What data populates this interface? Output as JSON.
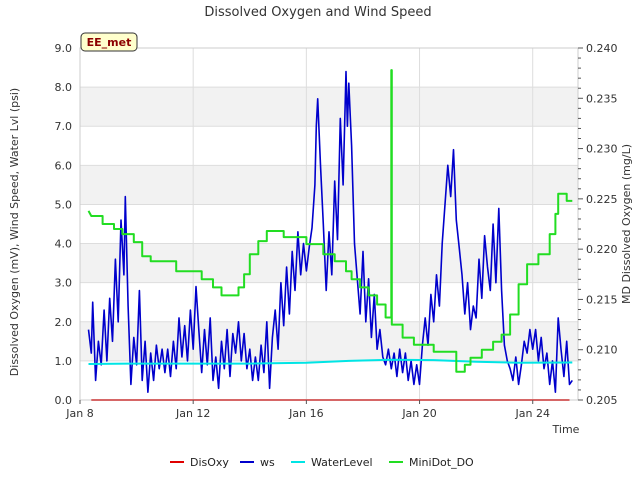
{
  "chart_data": {
    "type": "line",
    "title": "Dissolved Oxygen and Wind Speed",
    "station_label": "EE_met",
    "xlabel": "Time",
    "ylabel_left": "Dissolved Oxygen (mV), Wind Speed, Water Lvl (psi)",
    "ylabel_right": "MD Dissolved Oxygen (mg/L)",
    "x_range": [
      8.0,
      25.6
    ],
    "x_ticks": [
      {
        "value": 8,
        "label": "Jan 8"
      },
      {
        "value": 12,
        "label": "Jan 12"
      },
      {
        "value": 16,
        "label": "Jan 16"
      },
      {
        "value": 20,
        "label": "Jan 20"
      },
      {
        "value": 24,
        "label": "Jan 24"
      }
    ],
    "ylim_left": [
      0,
      9
    ],
    "y_ticks_left": [
      "0.0",
      "1.0",
      "2.0",
      "3.0",
      "4.0",
      "5.0",
      "6.0",
      "7.0",
      "8.0",
      "9.0"
    ],
    "ylim_right": [
      0.205,
      0.24
    ],
    "y_ticks_right": [
      "0.205",
      "0.210",
      "0.215",
      "0.220",
      "0.225",
      "0.230",
      "0.235",
      "0.240"
    ],
    "grid": true,
    "legend_position": "bottom",
    "series": [
      {
        "name": "DisOxy",
        "color": "#e00000",
        "axis": "left",
        "points": [
          [
            8.4,
            0.0
          ],
          [
            25.3,
            0.0
          ]
        ]
      },
      {
        "name": "ws",
        "color": "#0000cc",
        "axis": "left",
        "points": [
          [
            8.3,
            1.8
          ],
          [
            8.4,
            1.2
          ],
          [
            8.45,
            2.5
          ],
          [
            8.55,
            0.5
          ],
          [
            8.65,
            1.5
          ],
          [
            8.75,
            0.9
          ],
          [
            8.85,
            2.3
          ],
          [
            8.95,
            1.0
          ],
          [
            9.05,
            2.6
          ],
          [
            9.15,
            1.5
          ],
          [
            9.25,
            3.6
          ],
          [
            9.35,
            2.0
          ],
          [
            9.45,
            4.6
          ],
          [
            9.55,
            3.2
          ],
          [
            9.6,
            5.2
          ],
          [
            9.7,
            2.4
          ],
          [
            9.8,
            0.4
          ],
          [
            9.9,
            1.6
          ],
          [
            10.0,
            0.9
          ],
          [
            10.1,
            2.8
          ],
          [
            10.2,
            0.5
          ],
          [
            10.3,
            1.5
          ],
          [
            10.4,
            0.2
          ],
          [
            10.5,
            1.2
          ],
          [
            10.6,
            0.5
          ],
          [
            10.7,
            1.4
          ],
          [
            10.8,
            0.8
          ],
          [
            10.9,
            1.3
          ],
          [
            11.0,
            0.7
          ],
          [
            11.1,
            1.3
          ],
          [
            11.2,
            0.6
          ],
          [
            11.3,
            1.5
          ],
          [
            11.4,
            0.8
          ],
          [
            11.5,
            2.1
          ],
          [
            11.6,
            1.1
          ],
          [
            11.7,
            1.9
          ],
          [
            11.8,
            1.0
          ],
          [
            11.9,
            2.3
          ],
          [
            12.0,
            1.3
          ],
          [
            12.1,
            2.9
          ],
          [
            12.2,
            1.8
          ],
          [
            12.3,
            0.7
          ],
          [
            12.4,
            1.8
          ],
          [
            12.5,
            0.9
          ],
          [
            12.6,
            2.1
          ],
          [
            12.7,
            0.5
          ],
          [
            12.8,
            1.1
          ],
          [
            12.9,
            0.3
          ],
          [
            13.0,
            1.5
          ],
          [
            13.1,
            0.8
          ],
          [
            13.2,
            1.8
          ],
          [
            13.3,
            0.6
          ],
          [
            13.4,
            1.7
          ],
          [
            13.5,
            1.2
          ],
          [
            13.6,
            2.0
          ],
          [
            13.7,
            1.0
          ],
          [
            13.8,
            1.7
          ],
          [
            13.9,
            0.8
          ],
          [
            14.0,
            1.3
          ],
          [
            14.1,
            0.5
          ],
          [
            14.2,
            1.1
          ],
          [
            14.3,
            0.5
          ],
          [
            14.4,
            1.4
          ],
          [
            14.5,
            0.7
          ],
          [
            14.6,
            2.0
          ],
          [
            14.7,
            0.3
          ],
          [
            14.8,
            1.6
          ],
          [
            14.9,
            2.3
          ],
          [
            15.0,
            1.3
          ],
          [
            15.1,
            3.0
          ],
          [
            15.2,
            1.9
          ],
          [
            15.3,
            3.4
          ],
          [
            15.4,
            2.2
          ],
          [
            15.5,
            3.8
          ],
          [
            15.6,
            2.8
          ],
          [
            15.7,
            4.3
          ],
          [
            15.8,
            3.2
          ],
          [
            15.9,
            4.0
          ],
          [
            16.0,
            3.3
          ],
          [
            16.1,
            3.9
          ],
          [
            16.2,
            4.4
          ],
          [
            16.3,
            5.5
          ],
          [
            16.35,
            7.0
          ],
          [
            16.4,
            7.7
          ],
          [
            16.5,
            6.0
          ],
          [
            16.6,
            4.5
          ],
          [
            16.7,
            2.8
          ],
          [
            16.8,
            4.3
          ],
          [
            16.9,
            3.2
          ],
          [
            17.0,
            5.6
          ],
          [
            17.1,
            4.1
          ],
          [
            17.2,
            7.2
          ],
          [
            17.3,
            5.5
          ],
          [
            17.4,
            8.4
          ],
          [
            17.45,
            7.0
          ],
          [
            17.5,
            8.1
          ],
          [
            17.6,
            6.5
          ],
          [
            17.7,
            4.0
          ],
          [
            17.8,
            3.1
          ],
          [
            17.9,
            2.2
          ],
          [
            18.0,
            3.8
          ],
          [
            18.1,
            2.0
          ],
          [
            18.2,
            3.1
          ],
          [
            18.3,
            1.6
          ],
          [
            18.4,
            2.7
          ],
          [
            18.5,
            1.3
          ],
          [
            18.6,
            1.8
          ],
          [
            18.7,
            1.1
          ],
          [
            18.8,
            0.9
          ],
          [
            18.9,
            1.3
          ],
          [
            19.0,
            0.8
          ],
          [
            19.1,
            1.2
          ],
          [
            19.2,
            0.6
          ],
          [
            19.3,
            1.3
          ],
          [
            19.4,
            0.7
          ],
          [
            19.5,
            1.2
          ],
          [
            19.6,
            0.5
          ],
          [
            19.7,
            1.0
          ],
          [
            19.8,
            0.4
          ],
          [
            19.9,
            0.9
          ],
          [
            20.0,
            0.4
          ],
          [
            20.1,
            1.4
          ],
          [
            20.2,
            2.1
          ],
          [
            20.3,
            1.4
          ],
          [
            20.4,
            2.7
          ],
          [
            20.5,
            2.0
          ],
          [
            20.6,
            3.2
          ],
          [
            20.7,
            2.4
          ],
          [
            20.8,
            4.0
          ],
          [
            20.9,
            5.0
          ],
          [
            21.0,
            6.0
          ],
          [
            21.1,
            5.2
          ],
          [
            21.2,
            6.4
          ],
          [
            21.3,
            4.6
          ],
          [
            21.4,
            3.9
          ],
          [
            21.5,
            3.2
          ],
          [
            21.6,
            2.2
          ],
          [
            21.7,
            3.0
          ],
          [
            21.8,
            1.8
          ],
          [
            21.9,
            2.4
          ],
          [
            22.0,
            2.1
          ],
          [
            22.1,
            3.6
          ],
          [
            22.2,
            2.6
          ],
          [
            22.3,
            4.2
          ],
          [
            22.4,
            3.4
          ],
          [
            22.5,
            2.8
          ],
          [
            22.6,
            4.5
          ],
          [
            22.7,
            3.0
          ],
          [
            22.8,
            4.9
          ],
          [
            22.9,
            2.8
          ],
          [
            23.0,
            1.4
          ],
          [
            23.1,
            1.0
          ],
          [
            23.2,
            0.8
          ],
          [
            23.3,
            0.5
          ],
          [
            23.4,
            1.1
          ],
          [
            23.5,
            0.4
          ],
          [
            23.6,
            0.9
          ],
          [
            23.7,
            1.5
          ],
          [
            23.8,
            1.2
          ],
          [
            23.9,
            1.8
          ],
          [
            24.0,
            1.3
          ],
          [
            24.1,
            1.8
          ],
          [
            24.2,
            1.0
          ],
          [
            24.3,
            1.6
          ],
          [
            24.4,
            0.8
          ],
          [
            24.5,
            1.2
          ],
          [
            24.6,
            0.4
          ],
          [
            24.7,
            1.0
          ],
          [
            24.8,
            0.2
          ],
          [
            24.9,
            2.1
          ],
          [
            25.0,
            1.3
          ],
          [
            25.1,
            0.6
          ],
          [
            25.2,
            1.5
          ],
          [
            25.3,
            0.4
          ],
          [
            25.4,
            0.5
          ]
        ]
      },
      {
        "name": "WaterLevel",
        "color": "#00e5e5",
        "axis": "left",
        "points": [
          [
            8.3,
            0.92
          ],
          [
            10.0,
            0.93
          ],
          [
            12.0,
            0.93
          ],
          [
            14.0,
            0.93
          ],
          [
            16.0,
            0.95
          ],
          [
            17.5,
            1.0
          ],
          [
            19.0,
            1.03
          ],
          [
            20.5,
            1.02
          ],
          [
            22.0,
            0.98
          ],
          [
            23.5,
            0.95
          ],
          [
            25.4,
            0.96
          ]
        ]
      },
      {
        "name": "MiniDot_DO",
        "color": "#22dd22",
        "axis": "right",
        "points": [
          [
            8.3,
            0.2238
          ],
          [
            8.4,
            0.2233
          ],
          [
            8.8,
            0.2233
          ],
          [
            8.8,
            0.2225
          ],
          [
            9.2,
            0.2225
          ],
          [
            9.2,
            0.222
          ],
          [
            9.5,
            0.222
          ],
          [
            9.5,
            0.2215
          ],
          [
            9.9,
            0.2215
          ],
          [
            9.9,
            0.2207
          ],
          [
            10.2,
            0.2207
          ],
          [
            10.2,
            0.2193
          ],
          [
            10.5,
            0.2193
          ],
          [
            10.5,
            0.2188
          ],
          [
            11.4,
            0.2188
          ],
          [
            11.4,
            0.2178
          ],
          [
            12.3,
            0.2178
          ],
          [
            12.3,
            0.217
          ],
          [
            12.7,
            0.217
          ],
          [
            12.7,
            0.2162
          ],
          [
            13.0,
            0.2162
          ],
          [
            13.0,
            0.2154
          ],
          [
            13.6,
            0.2154
          ],
          [
            13.6,
            0.2162
          ],
          [
            13.8,
            0.2162
          ],
          [
            13.8,
            0.2175
          ],
          [
            14.0,
            0.2175
          ],
          [
            14.0,
            0.2195
          ],
          [
            14.3,
            0.2195
          ],
          [
            14.3,
            0.2208
          ],
          [
            14.6,
            0.2208
          ],
          [
            14.6,
            0.2218
          ],
          [
            15.2,
            0.2218
          ],
          [
            15.2,
            0.2212
          ],
          [
            16.0,
            0.2212
          ],
          [
            16.0,
            0.2205
          ],
          [
            16.6,
            0.2205
          ],
          [
            16.6,
            0.2195
          ],
          [
            17.0,
            0.2195
          ],
          [
            17.0,
            0.2188
          ],
          [
            17.4,
            0.2188
          ],
          [
            17.4,
            0.2178
          ],
          [
            17.6,
            0.2178
          ],
          [
            17.6,
            0.217
          ],
          [
            17.9,
            0.217
          ],
          [
            17.9,
            0.2162
          ],
          [
            18.2,
            0.2162
          ],
          [
            18.2,
            0.2154
          ],
          [
            18.5,
            0.2154
          ],
          [
            18.5,
            0.2145
          ],
          [
            18.8,
            0.2145
          ],
          [
            18.8,
            0.2132
          ],
          [
            19.0,
            0.2132
          ],
          [
            19.0,
            0.2378
          ],
          [
            19.02,
            0.2378
          ],
          [
            19.02,
            0.2125
          ],
          [
            19.4,
            0.2125
          ],
          [
            19.4,
            0.2112
          ],
          [
            19.8,
            0.2112
          ],
          [
            19.8,
            0.2105
          ],
          [
            20.5,
            0.2105
          ],
          [
            20.5,
            0.2098
          ],
          [
            21.3,
            0.2098
          ],
          [
            21.3,
            0.2078
          ],
          [
            21.6,
            0.2078
          ],
          [
            21.6,
            0.2085
          ],
          [
            21.8,
            0.2085
          ],
          [
            21.8,
            0.2092
          ],
          [
            22.2,
            0.2092
          ],
          [
            22.2,
            0.21
          ],
          [
            22.6,
            0.21
          ],
          [
            22.6,
            0.2108
          ],
          [
            22.9,
            0.2108
          ],
          [
            22.9,
            0.2115
          ],
          [
            23.2,
            0.2115
          ],
          [
            23.2,
            0.2135
          ],
          [
            23.5,
            0.2135
          ],
          [
            23.5,
            0.2165
          ],
          [
            23.8,
            0.2165
          ],
          [
            23.8,
            0.2185
          ],
          [
            24.2,
            0.2185
          ],
          [
            24.2,
            0.2195
          ],
          [
            24.6,
            0.2195
          ],
          [
            24.6,
            0.2215
          ],
          [
            24.8,
            0.2215
          ],
          [
            24.8,
            0.2235
          ],
          [
            24.9,
            0.2235
          ],
          [
            24.9,
            0.2255
          ],
          [
            25.2,
            0.2255
          ],
          [
            25.2,
            0.2248
          ],
          [
            25.4,
            0.2248
          ]
        ]
      }
    ]
  }
}
